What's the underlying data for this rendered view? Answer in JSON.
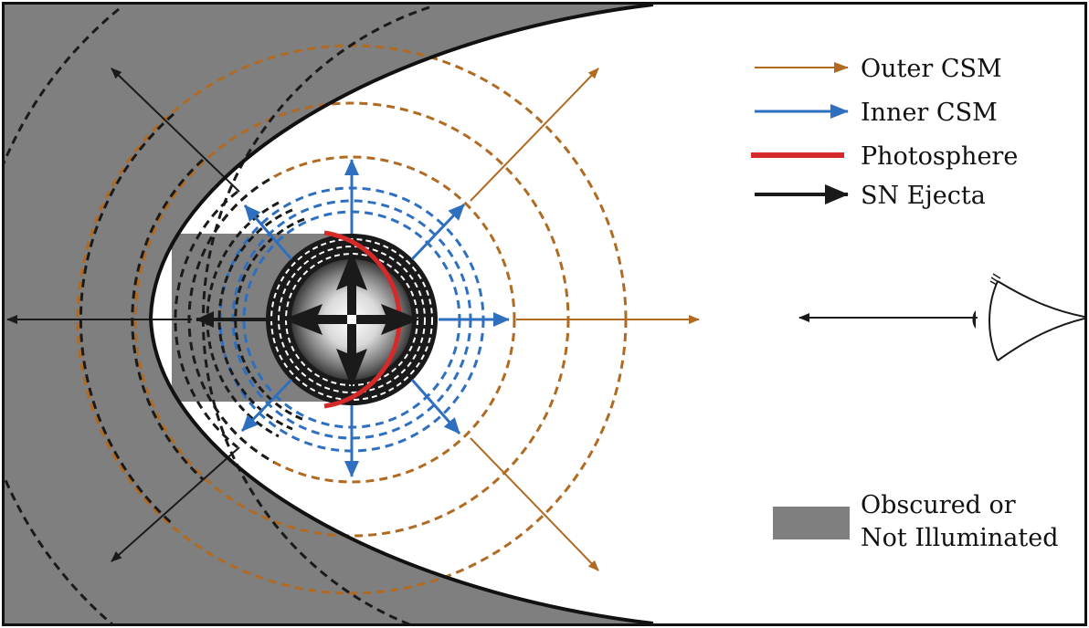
{
  "legend": {
    "outer_csm": "Outer CSM",
    "inner_csm": "Inner CSM",
    "photosphere": "Photosphere",
    "sn_ejecta": "SN Ejecta",
    "obscured_line1": "Obscured or",
    "obscured_line2": "Not Illuminated"
  },
  "colors": {
    "outer_csm": "#b06a22",
    "inner_csm": "#2f6fc0",
    "photosphere": "#d42a2a",
    "sn_ejecta": "#1a1a1a",
    "obscured": "#7f7f7f"
  },
  "icons": {
    "observer": "eye-icon"
  }
}
